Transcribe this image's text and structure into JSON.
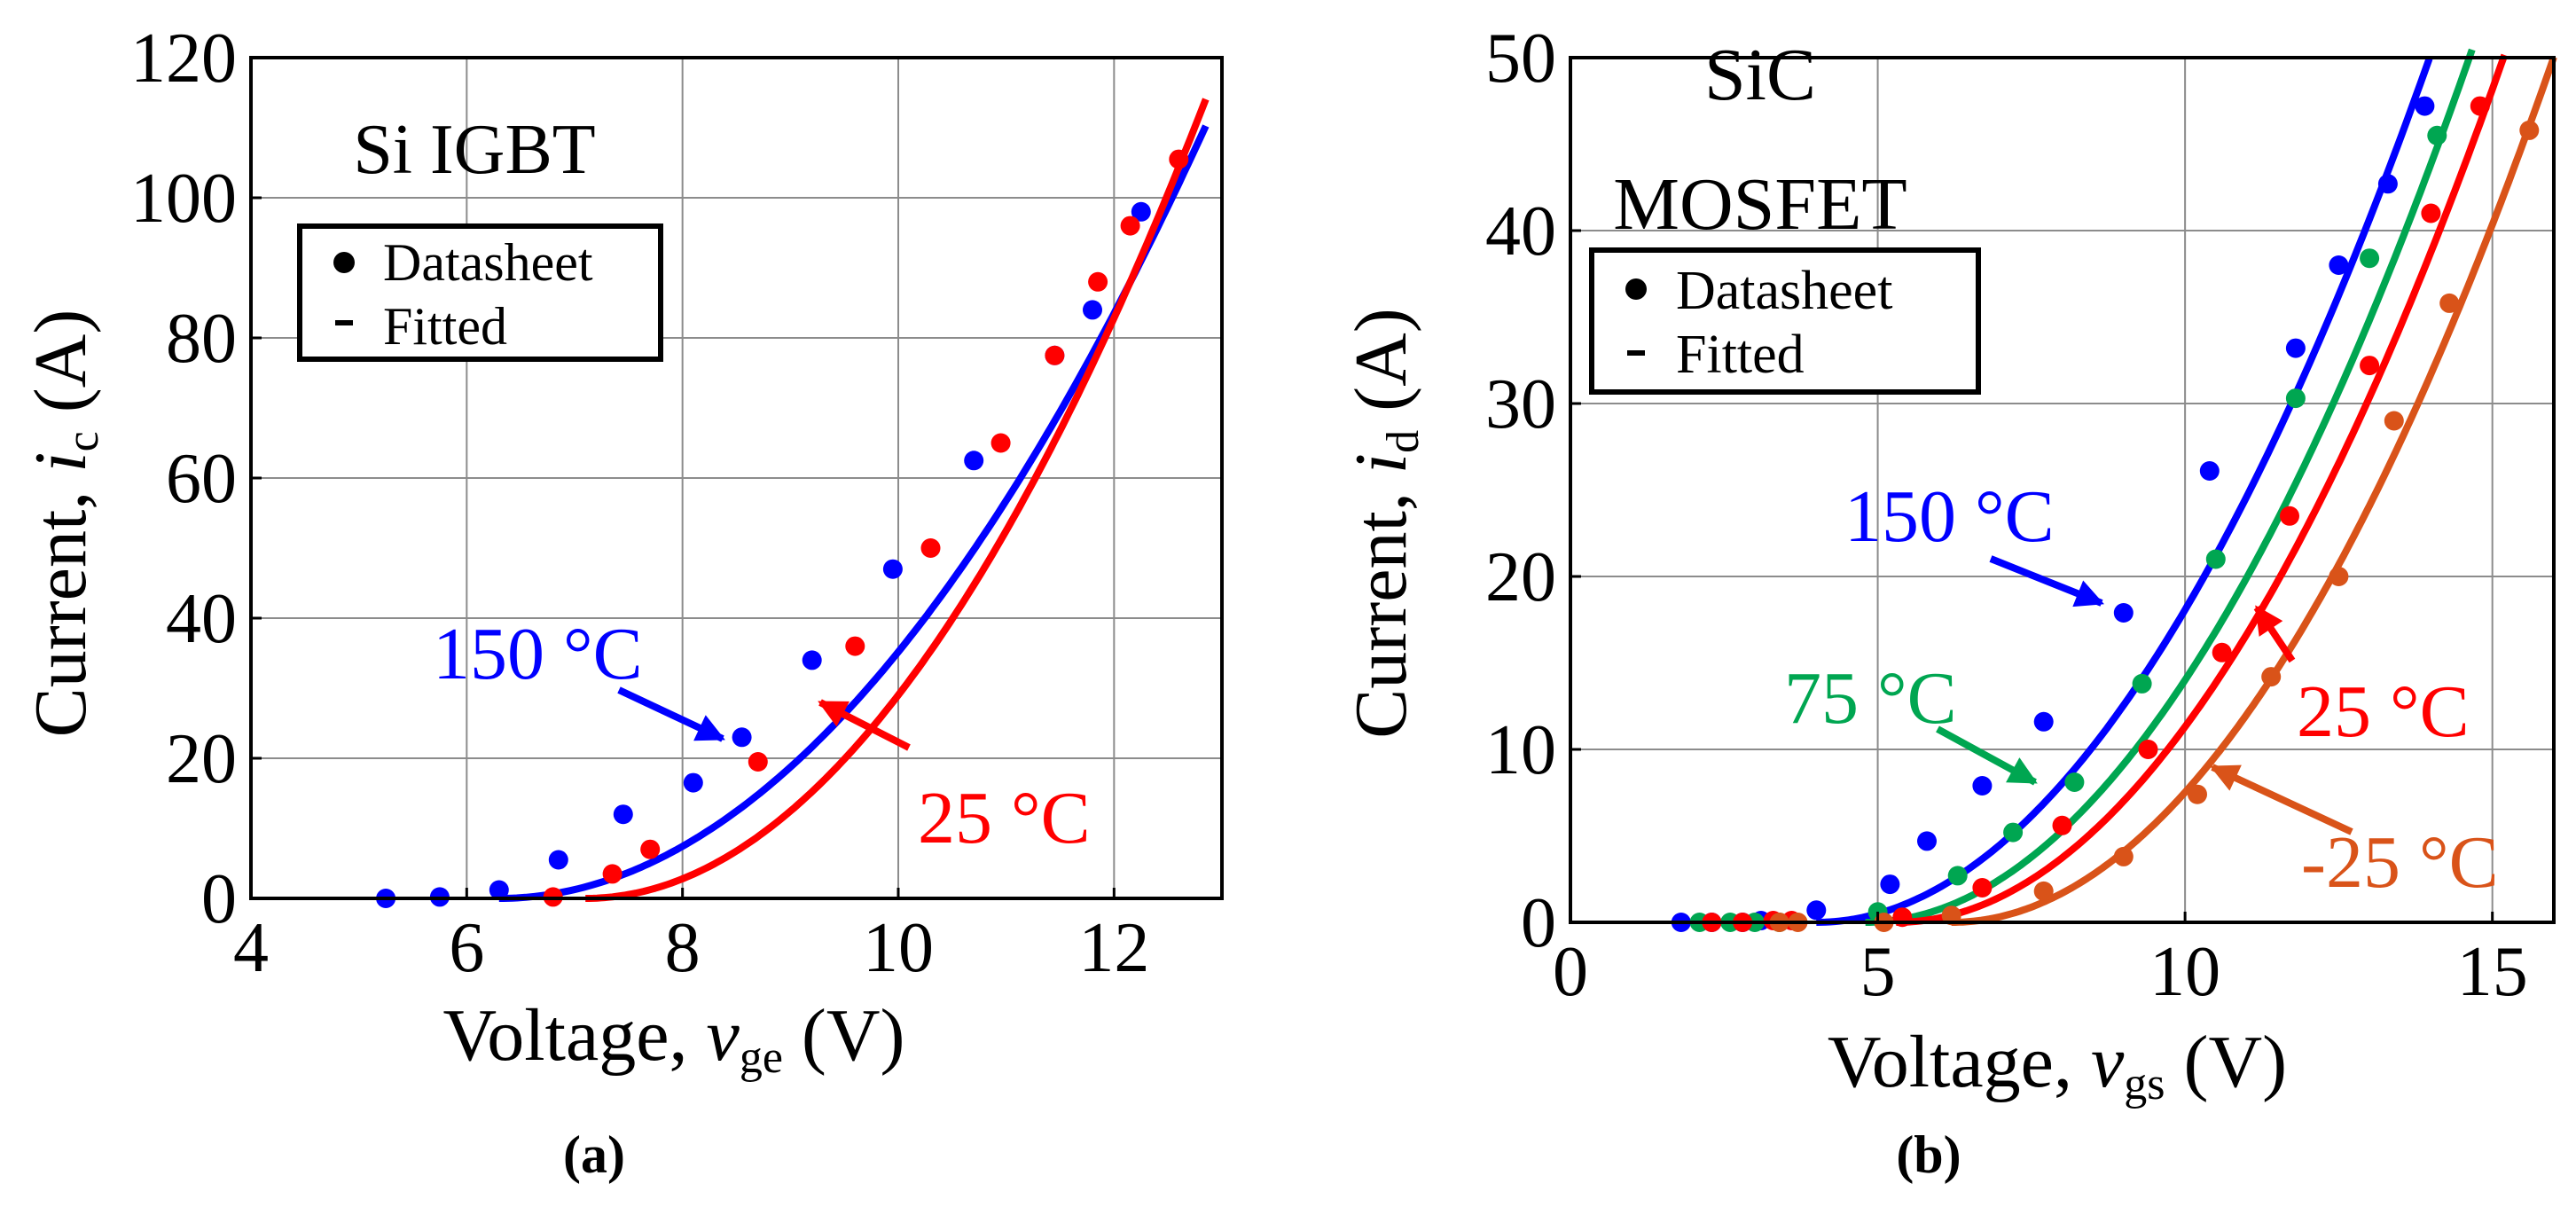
{
  "chart_data": [
    {
      "type": "scatter",
      "panel_label": "(a)",
      "title": "Si IGBT",
      "xlabel": {
        "prefix": "Voltage, ",
        "var": "v",
        "sub": "ge",
        "suffix": " (V)"
      },
      "ylabel": {
        "prefix": "Current, ",
        "var": "i",
        "sub": "c",
        "suffix": " (A)"
      },
      "xlim": [
        4,
        13
      ],
      "ylim": [
        0,
        120
      ],
      "xticks": [
        4,
        6,
        8,
        10,
        12
      ],
      "yticks": [
        0,
        20,
        40,
        60,
        80,
        100,
        120
      ],
      "grid": true,
      "legend": {
        "position": "top-left",
        "entries": [
          "Datasheet",
          "Fitted"
        ]
      },
      "series": [
        {
          "name": "150 °C",
          "color": "#0000ff",
          "datasheet": [
            [
              5.25,
              0
            ],
            [
              5.75,
              0.2
            ],
            [
              6.3,
              1.2
            ],
            [
              6.85,
              5.5
            ],
            [
              7.45,
              12
            ],
            [
              8.1,
              16.5
            ],
            [
              8.55,
              23
            ],
            [
              9.2,
              34
            ],
            [
              9.95,
              47
            ],
            [
              10.7,
              62.5
            ],
            [
              11.45,
              77.5
            ],
            [
              11.8,
              84
            ],
            [
              12.25,
              98
            ]
          ],
          "fit": {
            "vth": 6.3,
            "k": 2.57,
            "n": 2,
            "xmax": 12.85
          }
        },
        {
          "name": "25 °C",
          "color": "#ff0000",
          "datasheet": [
            [
              6.8,
              0.2
            ],
            [
              7.35,
              3.5
            ],
            [
              7.7,
              7
            ],
            [
              8.7,
              19.5
            ],
            [
              9.6,
              36
            ],
            [
              10.3,
              50
            ],
            [
              10.95,
              65
            ],
            [
              11.45,
              77.5
            ],
            [
              11.85,
              88
            ],
            [
              12.15,
              96
            ],
            [
              12.6,
              105.5
            ]
          ],
          "fit": {
            "vth": 7.1,
            "k": 3.45,
            "n": 2,
            "xmax": 12.85
          }
        }
      ],
      "annotations": [
        {
          "text": "150 °C",
          "color": "#0000ff",
          "arrow_to": [
            8.5,
            22
          ]
        },
        {
          "text": "25 °C",
          "color": "#ff0000",
          "arrow_to": [
            8.7,
            28
          ]
        }
      ]
    },
    {
      "type": "scatter",
      "panel_label": "(b)",
      "title_lines": [
        "SiC",
        "MOSFET"
      ],
      "xlabel": {
        "prefix": "Voltage, ",
        "var": "v",
        "sub": "gs",
        "suffix": " (V)"
      },
      "ylabel": {
        "prefix": "Current, ",
        "var": "i",
        "sub": "d",
        "suffix": " (A)"
      },
      "xlim": [
        0,
        16
      ],
      "ylim": [
        0,
        50
      ],
      "xticks": [
        0,
        5,
        10,
        15
      ],
      "yticks": [
        0,
        10,
        20,
        30,
        40,
        50
      ],
      "grid": true,
      "legend": {
        "position": "top-left",
        "entries": [
          "Datasheet",
          "Fitted"
        ]
      },
      "series": [
        {
          "name": "150 °C",
          "color": "#0000ff",
          "datasheet": [
            [
              1.8,
              0
            ],
            [
              2.3,
              0
            ],
            [
              2.8,
              0
            ],
            [
              3.1,
              0.1
            ],
            [
              4,
              0.7
            ],
            [
              5.2,
              2.2
            ],
            [
              5.8,
              4.7
            ],
            [
              6.7,
              7.9
            ],
            [
              7.7,
              11.6
            ],
            [
              9,
              17.9
            ],
            [
              10.4,
              26.1
            ],
            [
              11.8,
              33.2
            ],
            [
              12.5,
              38
            ],
            [
              13.3,
              42.7
            ],
            [
              13.9,
              47.2
            ]
          ],
          "fit": {
            "vth": 4.0,
            "k": 0.502,
            "n": 2,
            "xmax": 16
          }
        },
        {
          "name": "75 °C",
          "color": "#00a651",
          "datasheet": [
            [
              2.1,
              0
            ],
            [
              2.6,
              0
            ],
            [
              3,
              0
            ],
            [
              3.4,
              0
            ],
            [
              5,
              0.6
            ],
            [
              6.3,
              2.7
            ],
            [
              7.2,
              5.2
            ],
            [
              8.2,
              8.1
            ],
            [
              9.3,
              13.8
            ],
            [
              10.5,
              21
            ],
            [
              11.8,
              30.3
            ],
            [
              13,
              38.4
            ],
            [
              14.1,
              45.5
            ]
          ],
          "fit": {
            "vth": 4.8,
            "k": 0.518,
            "n": 2,
            "xmax": 16
          }
        },
        {
          "name": "25 °C",
          "color": "#ff0000",
          "datasheet": [
            [
              2.3,
              0
            ],
            [
              2.8,
              0
            ],
            [
              3.3,
              0.1
            ],
            [
              3.6,
              0.1
            ],
            [
              5.4,
              0.3
            ],
            [
              6.7,
              2
            ],
            [
              8,
              5.6
            ],
            [
              9.4,
              10
            ],
            [
              10.6,
              15.6
            ],
            [
              11.7,
              23.5
            ],
            [
              13,
              32.2
            ],
            [
              14,
              41
            ],
            [
              14.8,
              47.2
            ]
          ],
          "fit": {
            "vth": 5.3,
            "k": 0.512,
            "n": 2,
            "xmax": 16
          }
        },
        {
          "name": "-25 °C",
          "color": "#d95319",
          "datasheet": [
            [
              3.4,
              0
            ],
            [
              3.7,
              0
            ],
            [
              5.1,
              0
            ],
            [
              6.2,
              0.4
            ],
            [
              7.7,
              1.8
            ],
            [
              9,
              3.8
            ],
            [
              10.2,
              7.4
            ],
            [
              11.4,
              14.2
            ],
            [
              12.5,
              20
            ],
            [
              13.4,
              29
            ],
            [
              14.3,
              35.8
            ],
            [
              15.6,
              45.8
            ]
          ],
          "fit": {
            "vth": 6.2,
            "k": 0.521,
            "n": 2,
            "xmax": 16
          }
        }
      ],
      "annotations": [
        {
          "text": "150 °C",
          "color": "#0000ff",
          "arrow_to": [
            8.9,
            18.5
          ]
        },
        {
          "text": "75 °C",
          "color": "#00a651",
          "arrow_to": [
            8.8,
            7.8
          ]
        },
        {
          "text": "25 °C",
          "color": "#ff0000",
          "arrow_to": [
            10.7,
            18.5
          ]
        },
        {
          "text": "-25 °C",
          "color": "#d95319",
          "arrow_to": [
            11.5,
            8.8
          ]
        }
      ]
    }
  ]
}
